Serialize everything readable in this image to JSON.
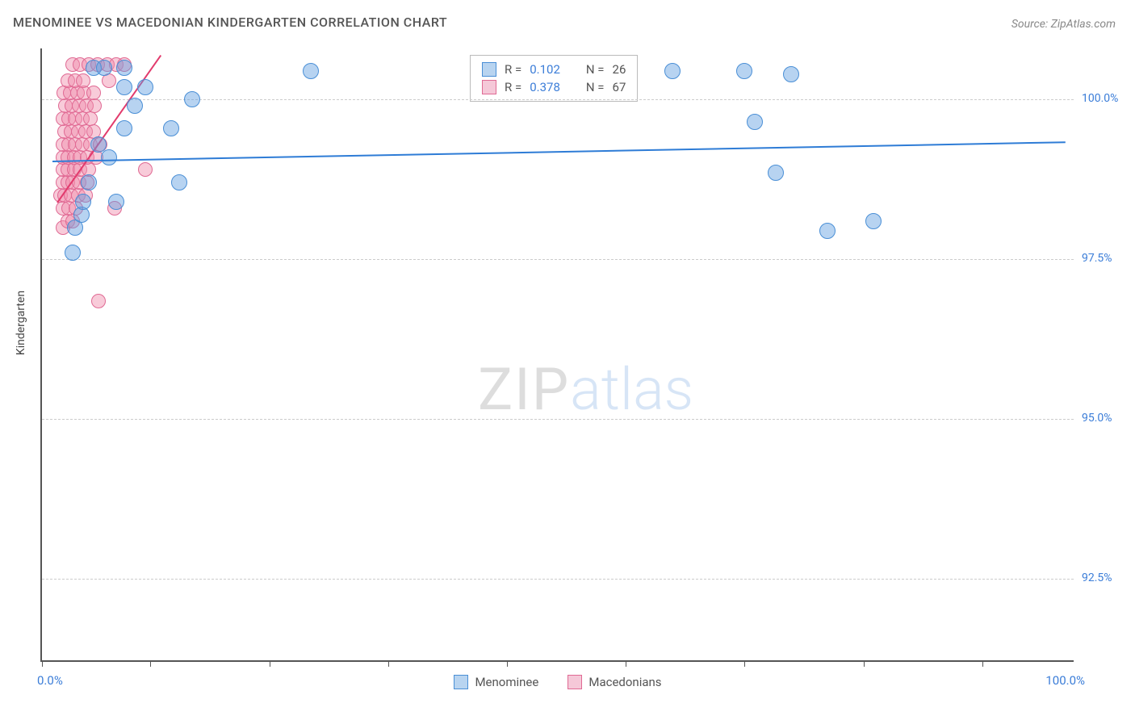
{
  "title": "MENOMINEE VS MACEDONIAN KINDERGARTEN CORRELATION CHART",
  "source_label": "Source: ",
  "source_name": "ZipAtlas.com",
  "axis": {
    "y_title": "Kindergarten",
    "x_min_label": "0.0%",
    "x_max_label": "100.0%",
    "x_min": 0,
    "x_max": 100,
    "y_min": 91.2,
    "y_max": 100.8,
    "y_ticks": [
      {
        "v": 100.0,
        "label": "100.0%"
      },
      {
        "v": 97.5,
        "label": "97.5%"
      },
      {
        "v": 95.0,
        "label": "95.0%"
      },
      {
        "v": 92.5,
        "label": "92.5%"
      }
    ],
    "x_tick_positions": [
      0,
      10.5,
      22,
      33.5,
      45,
      56.5,
      68,
      79.5,
      91
    ]
  },
  "watermark": {
    "zip": "ZIP",
    "atlas": "atlas"
  },
  "series": {
    "blue": {
      "name": "Menominee",
      "fill": "rgba(96,158,224,0.45)",
      "stroke": "#4a8fd6",
      "swatch_fill": "#b8d4f0",
      "swatch_border": "#4a8fd6",
      "point_radius": 10,
      "stats": {
        "R_label": "R = ",
        "R": "0.102",
        "N_label": "N = ",
        "N": "26"
      },
      "trend": {
        "x1": 1,
        "y1": 99.05,
        "x2": 99,
        "y2": 99.35,
        "color": "#2e7cd6",
        "width": 2
      },
      "points": [
        {
          "x": 3.0,
          "y": 97.6
        },
        {
          "x": 3.2,
          "y": 98.0
        },
        {
          "x": 3.8,
          "y": 98.2
        },
        {
          "x": 4.0,
          "y": 98.4
        },
        {
          "x": 7.2,
          "y": 98.4
        },
        {
          "x": 4.5,
          "y": 98.7
        },
        {
          "x": 6.5,
          "y": 99.1
        },
        {
          "x": 5.5,
          "y": 99.3
        },
        {
          "x": 8.0,
          "y": 99.55
        },
        {
          "x": 12.5,
          "y": 99.55
        },
        {
          "x": 13.3,
          "y": 98.7
        },
        {
          "x": 9.0,
          "y": 99.9
        },
        {
          "x": 8.0,
          "y": 100.2
        },
        {
          "x": 10.0,
          "y": 100.2
        },
        {
          "x": 8.0,
          "y": 100.5
        },
        {
          "x": 5.0,
          "y": 100.5
        },
        {
          "x": 6.0,
          "y": 100.5
        },
        {
          "x": 14.5,
          "y": 100.0
        },
        {
          "x": 26.0,
          "y": 100.45
        },
        {
          "x": 61.0,
          "y": 100.45
        },
        {
          "x": 68.0,
          "y": 100.45
        },
        {
          "x": 72.5,
          "y": 100.4
        },
        {
          "x": 69.0,
          "y": 99.65
        },
        {
          "x": 71.0,
          "y": 98.85
        },
        {
          "x": 76.0,
          "y": 97.95
        },
        {
          "x": 80.5,
          "y": 98.1
        }
      ]
    },
    "pink": {
      "name": "Macedonians",
      "fill": "rgba(240,140,170,0.45)",
      "stroke": "#e06a94",
      "swatch_fill": "#f5c8d8",
      "swatch_border": "#e06a94",
      "point_radius": 9,
      "stats": {
        "R_label": "R = ",
        "R": "0.378",
        "N_label": "N = ",
        "N": "67"
      },
      "trend": {
        "x1": 1.5,
        "y1": 98.4,
        "x2": 11.5,
        "y2": 100.7,
        "color": "#e23b6d",
        "width": 2
      },
      "points": [
        {
          "x": 5.5,
          "y": 96.85
        },
        {
          "x": 2.0,
          "y": 98.0
        },
        {
          "x": 2.5,
          "y": 98.1
        },
        {
          "x": 3.0,
          "y": 98.1
        },
        {
          "x": 2.0,
          "y": 98.3
        },
        {
          "x": 2.6,
          "y": 98.3
        },
        {
          "x": 3.3,
          "y": 98.3
        },
        {
          "x": 1.8,
          "y": 98.5
        },
        {
          "x": 2.2,
          "y": 98.5
        },
        {
          "x": 2.8,
          "y": 98.5
        },
        {
          "x": 3.5,
          "y": 98.5
        },
        {
          "x": 4.2,
          "y": 98.5
        },
        {
          "x": 7.0,
          "y": 98.3
        },
        {
          "x": 2.0,
          "y": 98.7
        },
        {
          "x": 2.5,
          "y": 98.7
        },
        {
          "x": 3.0,
          "y": 98.7
        },
        {
          "x": 3.6,
          "y": 98.7
        },
        {
          "x": 4.4,
          "y": 98.7
        },
        {
          "x": 10.0,
          "y": 98.9
        },
        {
          "x": 2.0,
          "y": 98.9
        },
        {
          "x": 2.5,
          "y": 98.9
        },
        {
          "x": 3.1,
          "y": 98.9
        },
        {
          "x": 3.7,
          "y": 98.9
        },
        {
          "x": 4.5,
          "y": 98.9
        },
        {
          "x": 2.0,
          "y": 99.1
        },
        {
          "x": 2.5,
          "y": 99.1
        },
        {
          "x": 3.1,
          "y": 99.1
        },
        {
          "x": 3.7,
          "y": 99.1
        },
        {
          "x": 4.4,
          "y": 99.1
        },
        {
          "x": 5.2,
          "y": 99.1
        },
        {
          "x": 2.0,
          "y": 99.3
        },
        {
          "x": 2.6,
          "y": 99.3
        },
        {
          "x": 3.2,
          "y": 99.3
        },
        {
          "x": 3.9,
          "y": 99.3
        },
        {
          "x": 4.7,
          "y": 99.3
        },
        {
          "x": 5.6,
          "y": 99.3
        },
        {
          "x": 2.2,
          "y": 99.5
        },
        {
          "x": 2.8,
          "y": 99.5
        },
        {
          "x": 3.5,
          "y": 99.5
        },
        {
          "x": 4.2,
          "y": 99.5
        },
        {
          "x": 5.0,
          "y": 99.5
        },
        {
          "x": 2.0,
          "y": 99.7
        },
        {
          "x": 2.6,
          "y": 99.7
        },
        {
          "x": 3.2,
          "y": 99.7
        },
        {
          "x": 3.9,
          "y": 99.7
        },
        {
          "x": 4.7,
          "y": 99.7
        },
        {
          "x": 2.3,
          "y": 99.9
        },
        {
          "x": 2.9,
          "y": 99.9
        },
        {
          "x": 3.6,
          "y": 99.9
        },
        {
          "x": 4.3,
          "y": 99.9
        },
        {
          "x": 5.1,
          "y": 99.9
        },
        {
          "x": 2.1,
          "y": 100.1
        },
        {
          "x": 2.7,
          "y": 100.1
        },
        {
          "x": 3.4,
          "y": 100.1
        },
        {
          "x": 4.1,
          "y": 100.1
        },
        {
          "x": 5.0,
          "y": 100.1
        },
        {
          "x": 6.5,
          "y": 100.3
        },
        {
          "x": 2.5,
          "y": 100.3
        },
        {
          "x": 3.2,
          "y": 100.3
        },
        {
          "x": 4.0,
          "y": 100.3
        },
        {
          "x": 3.0,
          "y": 100.55
        },
        {
          "x": 3.7,
          "y": 100.55
        },
        {
          "x": 4.5,
          "y": 100.55
        },
        {
          "x": 5.4,
          "y": 100.55
        },
        {
          "x": 6.3,
          "y": 100.55
        },
        {
          "x": 7.2,
          "y": 100.55
        },
        {
          "x": 8.0,
          "y": 100.55
        }
      ]
    }
  }
}
